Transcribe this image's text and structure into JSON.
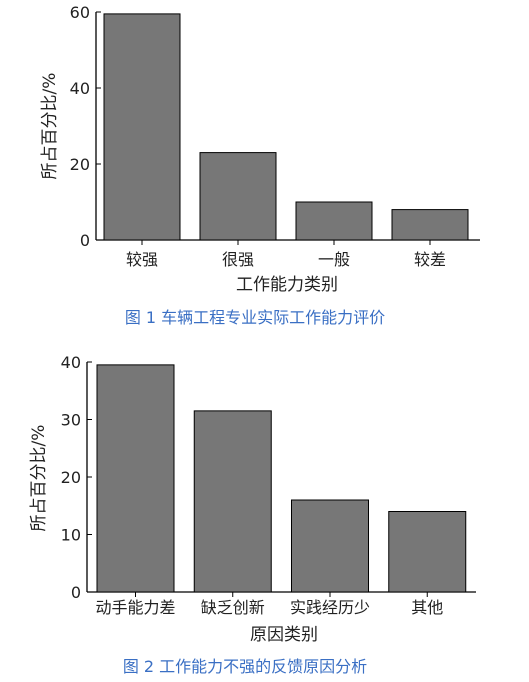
{
  "colors": {
    "bar": "#777777",
    "axis": "#000000",
    "caption": "#3a6fc4",
    "text": "#222222"
  },
  "chart_data": [
    {
      "type": "bar",
      "title": "",
      "caption": "图 1 车辆工程专业实际工作能力评价",
      "xlabel": "工作能力类别",
      "ylabel": "所占百分比/%",
      "categories": [
        "较强",
        "很强",
        "一般",
        "较差"
      ],
      "values": [
        59.5,
        23,
        10,
        8
      ],
      "ylim": [
        0,
        60
      ],
      "yticks": [
        0,
        20,
        40,
        60
      ],
      "grid": false
    },
    {
      "type": "bar",
      "title": "",
      "caption": "图 2 工作能力不强的反馈原因分析",
      "xlabel": "原因类别",
      "ylabel": "所占百分比/%",
      "categories": [
        "动手能力差",
        "缺乏创新",
        "实践经历少",
        "其他"
      ],
      "values": [
        39.5,
        31.5,
        16,
        14
      ],
      "ylim": [
        0,
        40
      ],
      "yticks": [
        0,
        10,
        20,
        30,
        40
      ],
      "grid": false
    }
  ]
}
